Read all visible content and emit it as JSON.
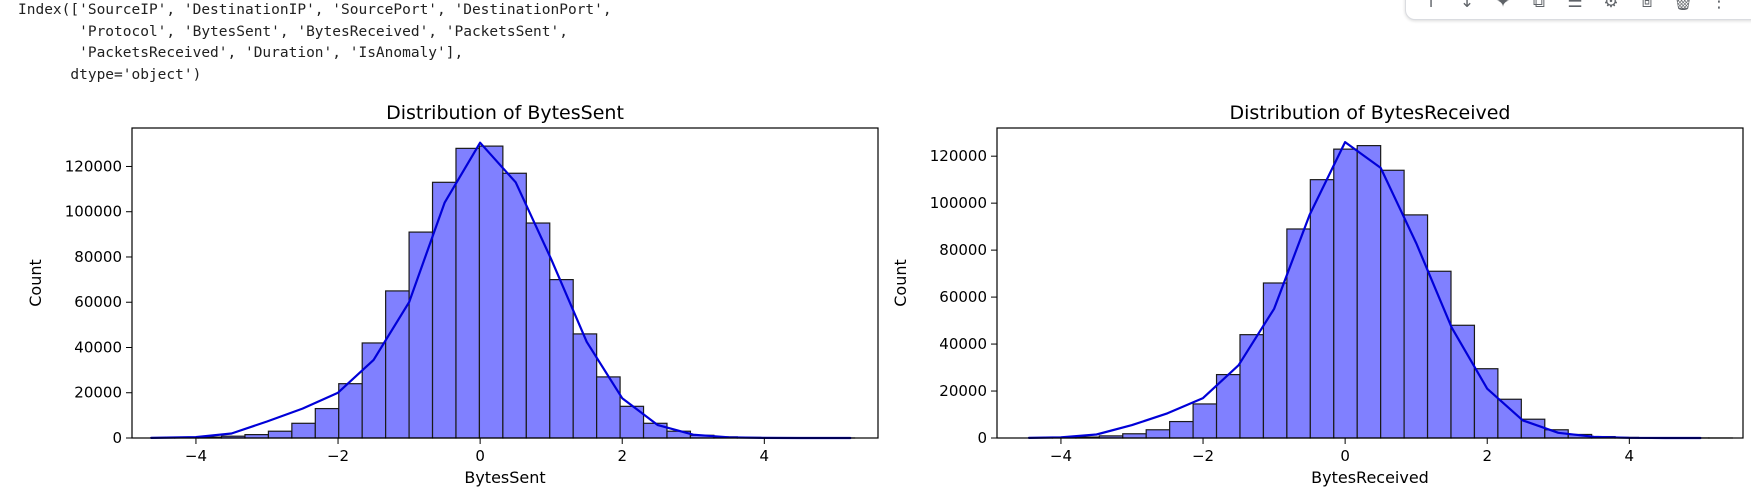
{
  "output_text": "Index(['SourceIP', 'DestinationIP', 'SourcePort', 'DestinationPort',\n       'Protocol', 'BytesSent', 'BytesReceived', 'PacketsSent',\n       'PacketsReceived', 'Duration', 'IsAnomaly'],\n      dtype='object')",
  "toolbar": {
    "icons": [
      "move-up-icon",
      "move-down-icon",
      "sparkle-icon",
      "link-icon",
      "comment-icon",
      "gear-icon",
      "mirror-cell-icon",
      "delete-icon",
      "more-icon"
    ]
  },
  "colors": {
    "bar_fill": "#8080ff",
    "bar_edge": "#1a1a1a",
    "kde_line": "#0000d8",
    "axis": "#000000"
  },
  "chart_data": [
    {
      "type": "bar",
      "title": "Distribution of BytesSent",
      "xlabel": "BytesSent",
      "ylabel": "Count",
      "xlim": [
        -4.9,
        5.6
      ],
      "ylim": [
        0,
        137000
      ],
      "xticks": [
        -4,
        -2,
        0,
        2,
        4
      ],
      "yticks": [
        0,
        20000,
        40000,
        60000,
        80000,
        100000,
        120000
      ],
      "grid": false,
      "bins": {
        "start": -4.63,
        "width": 0.33,
        "values": [
          100,
          200,
          400,
          800,
          1500,
          3000,
          6500,
          13000,
          24000,
          42000,
          65000,
          91000,
          113000,
          128000,
          129000,
          117000,
          95000,
          70000,
          46000,
          27000,
          14000,
          6500,
          3000,
          1200,
          500,
          250,
          120,
          60,
          30,
          15
        ]
      },
      "kde": {
        "x": [
          -4.63,
          -4.0,
          -3.5,
          -3.0,
          -2.5,
          -2.0,
          -1.5,
          -1.0,
          -0.5,
          0.0,
          0.5,
          1.0,
          1.5,
          2.0,
          2.5,
          3.0,
          3.5,
          4.0,
          4.5,
          5.21
        ],
        "y": [
          30,
          400,
          2000,
          7300,
          13000,
          20000,
          34500,
          60000,
          104000,
          130500,
          113000,
          79000,
          42500,
          17600,
          5700,
          1450,
          290,
          45,
          5,
          0
        ]
      }
    },
    {
      "type": "bar",
      "title": "Distribution of BytesReceived",
      "xlabel": "BytesReceived",
      "ylabel": "Count",
      "xlim": [
        -4.9,
        5.6
      ],
      "ylim": [
        0,
        132000
      ],
      "xticks": [
        -4,
        -2,
        0,
        2,
        4
      ],
      "yticks": [
        0,
        20000,
        40000,
        60000,
        80000,
        100000,
        120000
      ],
      "grid": false,
      "bins": {
        "start": -4.45,
        "width": 0.33,
        "values": [
          100,
          200,
          400,
          900,
          1800,
          3500,
          7000,
          14500,
          27000,
          44000,
          66000,
          89000,
          110000,
          123000,
          124500,
          114000,
          95000,
          71000,
          48000,
          29500,
          16500,
          8000,
          3500,
          1500,
          600,
          250,
          100,
          50,
          20,
          10
        ]
      },
      "kde": {
        "x": [
          -4.45,
          -4.0,
          -3.5,
          -3.0,
          -2.5,
          -2.0,
          -1.5,
          -1.0,
          -0.5,
          0.0,
          0.5,
          1.0,
          1.5,
          2.0,
          2.5,
          3.0,
          3.5,
          4.0,
          4.5,
          5.0
        ],
        "y": [
          40,
          300,
          1500,
          5500,
          10500,
          17000,
          31000,
          55000,
          95000,
          126000,
          115000,
          83000,
          47000,
          21000,
          7500,
          2200,
          500,
          90,
          10,
          0
        ]
      }
    }
  ]
}
